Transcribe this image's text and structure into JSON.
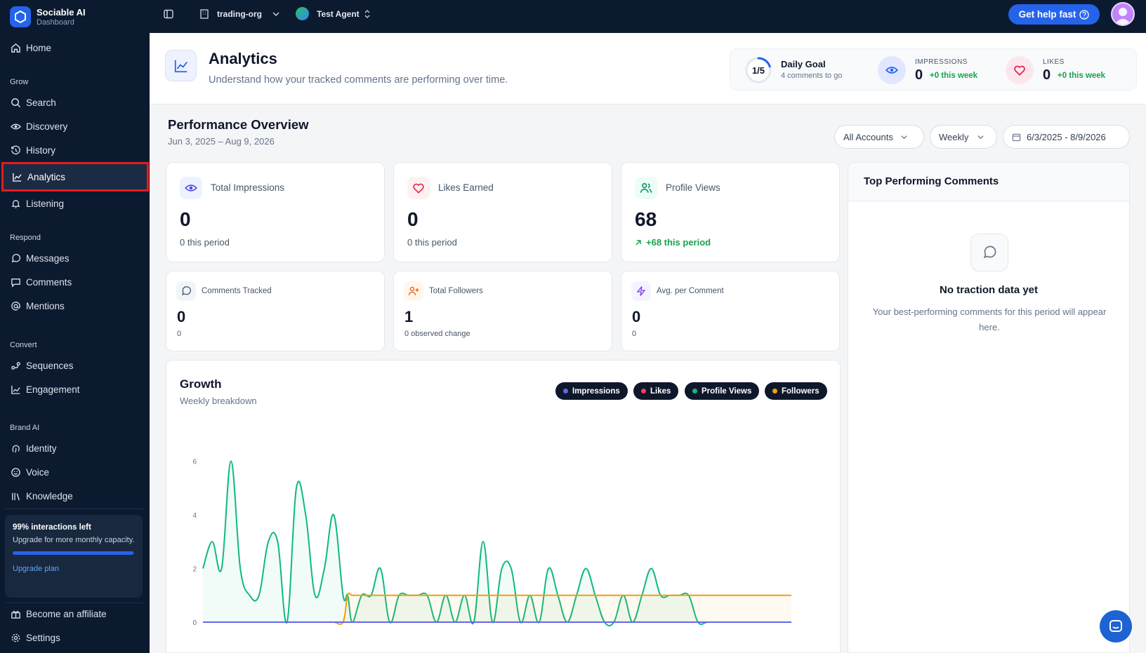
{
  "brand": {
    "name": "Sociable AI",
    "subtitle": "Dashboard"
  },
  "sidebar": {
    "home": "Home",
    "sections": {
      "grow": "Grow",
      "respond": "Respond",
      "convert": "Convert",
      "brand_ai": "Brand AI"
    },
    "grow": [
      {
        "label": "Search",
        "icon": "search-icon"
      },
      {
        "label": "Discovery",
        "icon": "eye-icon"
      },
      {
        "label": "History",
        "icon": "history-icon"
      },
      {
        "label": "Analytics",
        "icon": "chart-line-icon",
        "active": true
      },
      {
        "label": "Listening",
        "icon": "bell-icon"
      }
    ],
    "respond": [
      {
        "label": "Messages",
        "icon": "message-circle-icon"
      },
      {
        "label": "Comments",
        "icon": "message-square-icon"
      },
      {
        "label": "Mentions",
        "icon": "at-sign-icon"
      }
    ],
    "convert": [
      {
        "label": "Sequences",
        "icon": "workflow-icon"
      },
      {
        "label": "Engagement",
        "icon": "trend-icon"
      }
    ],
    "brand_ai": [
      {
        "label": "Identity",
        "icon": "fingerprint-icon"
      },
      {
        "label": "Voice",
        "icon": "smile-icon"
      },
      {
        "label": "Knowledge",
        "icon": "library-icon"
      }
    ],
    "upgrade": {
      "title": "99% interactions left",
      "text": "Upgrade for more monthly capacity.",
      "progress": 0.99,
      "link": "Upgrade plan"
    },
    "affiliate": "Become an affiliate",
    "settings": "Settings"
  },
  "topbar": {
    "org": "trading-org",
    "agent": "Test Agent",
    "help": "Get help fast"
  },
  "header": {
    "title": "Analytics",
    "subtitle": "Understand how your tracked comments are performing over time."
  },
  "stats": {
    "goal": {
      "ring": "1/5",
      "title": "Daily Goal",
      "sub": "4 comments to go",
      "progress": 0.2
    },
    "impressions": {
      "label": "IMPRESSIONS",
      "value": "0",
      "delta": "+0 this week"
    },
    "likes": {
      "label": "LIKES",
      "value": "0",
      "delta": "+0 this week"
    }
  },
  "overview": {
    "title": "Performance Overview",
    "range": "Jun 3, 2025 – Aug 9, 2026",
    "filters": {
      "accounts": "All Accounts",
      "period": "Weekly",
      "dates": "6/3/2025 - 8/9/2026"
    }
  },
  "cards": [
    {
      "label": "Total Impressions",
      "value": "0",
      "sub": "0 this period"
    },
    {
      "label": "Likes Earned",
      "value": "0",
      "sub": "0 this period"
    },
    {
      "label": "Profile Views",
      "value": "68",
      "sub": "+68 this period"
    },
    {
      "label": "Comments Tracked",
      "value": "0",
      "sub": "0"
    },
    {
      "label": "Total Followers",
      "value": "1",
      "sub": "0 observed change"
    },
    {
      "label": "Avg. per Comment",
      "value": "0",
      "sub": "0"
    }
  ],
  "top_comments": {
    "title": "Top Performing Comments",
    "empty_title": "No traction data yet",
    "empty_text": "Your best-performing comments for this period will appear here."
  },
  "growth": {
    "title": "Growth",
    "subtitle": "Weekly breakdown",
    "colors": {
      "Impressions": "#6366f1",
      "Likes": "#f43f5e",
      "Profile Views": "#10b981",
      "Followers": "#f59e0b"
    }
  },
  "chart_data": {
    "type": "line",
    "ylim": [
      0,
      8
    ],
    "yticks": [
      "0",
      "2",
      "4",
      "6",
      "8"
    ],
    "x": [
      0,
      1,
      2,
      3,
      4,
      5,
      6,
      7,
      8,
      9,
      10,
      11,
      12,
      13,
      14,
      15,
      15.5,
      16,
      17,
      18,
      19,
      20,
      21,
      22,
      23,
      24,
      25,
      26,
      27,
      28,
      29,
      30,
      31,
      32,
      33,
      34,
      35,
      36,
      37,
      38,
      39,
      40,
      41,
      42,
      43,
      44,
      45,
      46,
      47,
      48,
      49,
      50,
      51,
      52,
      53,
      54,
      55,
      56,
      57,
      58,
      59,
      60,
      61,
      62,
      63
    ],
    "series": [
      {
        "name": "Profile Views",
        "color": "#10b981",
        "values": [
          2,
          3,
          2,
          6,
          2,
          1,
          1,
          3,
          3,
          0,
          5,
          4,
          1,
          2,
          4,
          1,
          1,
          0,
          1,
          1,
          2,
          0,
          1,
          1,
          1,
          1,
          0,
          1,
          0,
          1,
          0,
          3,
          0,
          2,
          2,
          0,
          1,
          0,
          2,
          1,
          0,
          1,
          2,
          1,
          0,
          0,
          1,
          0,
          1,
          2,
          1,
          1,
          1,
          1,
          0,
          0,
          0,
          0,
          0,
          0,
          0,
          0,
          0,
          0,
          0
        ]
      },
      {
        "name": "Followers",
        "color": "#f59e0b",
        "values": [
          0,
          0,
          0,
          0,
          0,
          0,
          0,
          0,
          0,
          0,
          0,
          0,
          0,
          0,
          0,
          0,
          1,
          1,
          1,
          1,
          1,
          1,
          1,
          1,
          1,
          1,
          1,
          1,
          1,
          1,
          1,
          1,
          1,
          1,
          1,
          1,
          1,
          1,
          1,
          1,
          1,
          1,
          1,
          1,
          1,
          1,
          1,
          1,
          1,
          1,
          1,
          1,
          1,
          1,
          1,
          1,
          1,
          1,
          1,
          1,
          1,
          1,
          1,
          1,
          1
        ]
      },
      {
        "name": "Likes",
        "color": "#f43f5e",
        "values": [
          0,
          0,
          0,
          0,
          0,
          0,
          0,
          0,
          0,
          0,
          0,
          0,
          0,
          0,
          0,
          0,
          0,
          0,
          0,
          0,
          0,
          0,
          0,
          0,
          0,
          0,
          0,
          0,
          0,
          0,
          0,
          0,
          0,
          0,
          0,
          0,
          0,
          0,
          0,
          0,
          0,
          0,
          0,
          0,
          0,
          0,
          0,
          0,
          0,
          0,
          0,
          0,
          0,
          0,
          0,
          0,
          0,
          0,
          0,
          0,
          0,
          0,
          0,
          0,
          0
        ]
      },
      {
        "name": "Impressions",
        "color": "#6366f1",
        "values": [
          0,
          0,
          0,
          0,
          0,
          0,
          0,
          0,
          0,
          0,
          0,
          0,
          0,
          0,
          0,
          0,
          0,
          0,
          0,
          0,
          0,
          0,
          0,
          0,
          0,
          0,
          0,
          0,
          0,
          0,
          0,
          0,
          0,
          0,
          0,
          0,
          0,
          0,
          0,
          0,
          0,
          0,
          0,
          0,
          0,
          0,
          0,
          0,
          0,
          0,
          0,
          0,
          0,
          0,
          0,
          0,
          0,
          0,
          0,
          0,
          0,
          0,
          0,
          0,
          0
        ]
      }
    ]
  }
}
